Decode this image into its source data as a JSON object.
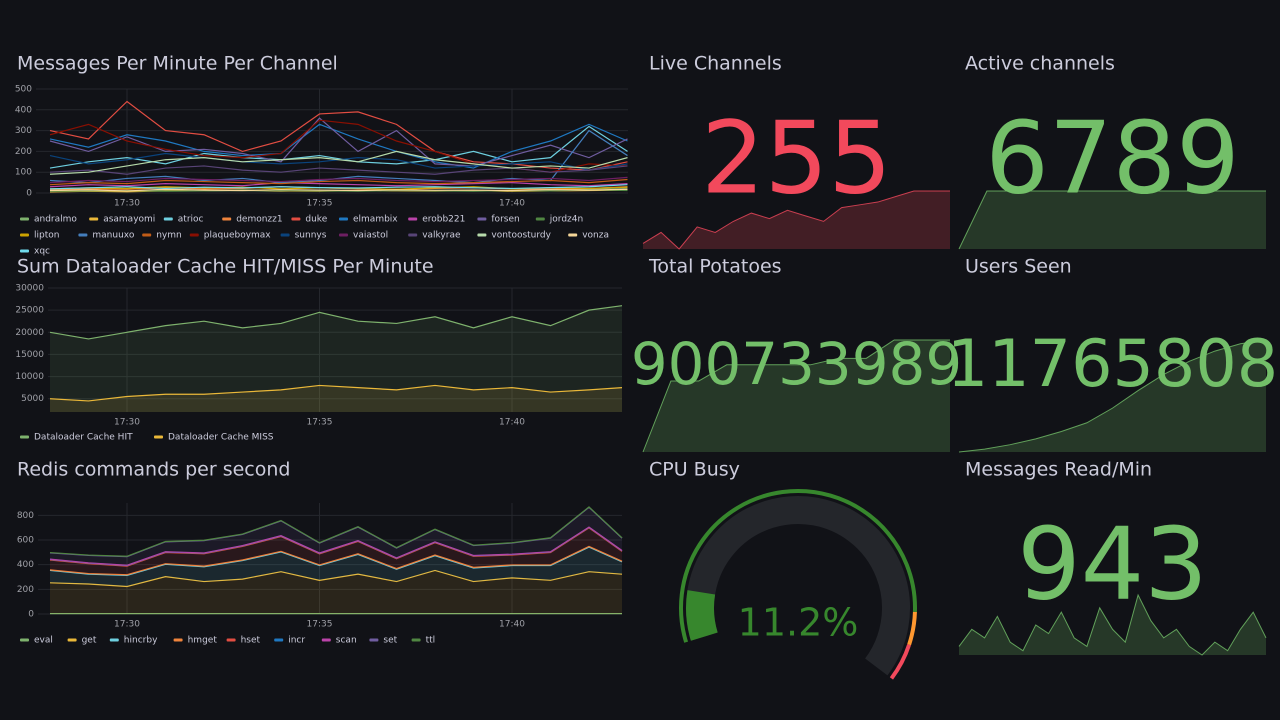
{
  "chart_data": [
    {
      "type": "timeseries",
      "title": "Messages Per Minute Per Channel",
      "categories": [
        null,
        null,
        "17:30",
        null,
        null,
        null,
        null,
        "17:35",
        null,
        null,
        null,
        null,
        "17:40",
        null,
        null,
        null
      ],
      "ylim": [
        0,
        500
      ],
      "yticks": [
        0,
        100,
        200,
        300,
        400,
        500
      ],
      "grid": true,
      "series": [
        {
          "name": "andralmo",
          "color": "#7eb26d",
          "values": [
            10,
            12,
            8,
            15,
            10,
            12,
            9,
            14,
            11,
            10,
            13,
            12,
            10,
            15,
            20,
            25
          ]
        },
        {
          "name": "asamayomi",
          "color": "#eab839",
          "values": [
            5,
            8,
            6,
            10,
            12,
            15,
            10,
            8,
            12,
            10,
            9,
            11,
            8,
            10,
            12,
            14
          ]
        },
        {
          "name": "atrioc",
          "color": "#6ed0e0",
          "values": [
            120,
            150,
            170,
            140,
            190,
            170,
            160,
            180,
            150,
            140,
            160,
            200,
            150,
            170,
            320,
            200
          ]
        },
        {
          "name": "demonzz1",
          "color": "#ef843c",
          "values": [
            15,
            20,
            18,
            25,
            20,
            22,
            30,
            25,
            20,
            18,
            22,
            25,
            20,
            18,
            22,
            30
          ]
        },
        {
          "name": "duke",
          "color": "#e24d42",
          "values": [
            300,
            260,
            440,
            300,
            280,
            200,
            250,
            380,
            390,
            330,
            200,
            150,
            140,
            120,
            110,
            150
          ]
        },
        {
          "name": "elmambix",
          "color": "#1f78c1",
          "values": [
            260,
            220,
            280,
            250,
            200,
            180,
            190,
            330,
            260,
            200,
            150,
            120,
            200,
            250,
            330,
            250
          ]
        },
        {
          "name": "erobb221",
          "color": "#ba43a9",
          "values": [
            30,
            40,
            35,
            45,
            40,
            35,
            50,
            45,
            40,
            35,
            40,
            45,
            50,
            40,
            35,
            45
          ]
        },
        {
          "name": "forsen",
          "color": "#705da0",
          "values": [
            250,
            200,
            270,
            200,
            210,
            190,
            150,
            360,
            200,
            300,
            140,
            130,
            180,
            230,
            170,
            260
          ]
        },
        {
          "name": "jordz4n",
          "color": "#508642",
          "values": [
            8,
            10,
            12,
            8,
            10,
            15,
            12,
            10,
            8,
            12,
            10,
            8,
            12,
            10,
            15,
            12
          ]
        },
        {
          "name": "lipton",
          "color": "#cca300",
          "values": [
            20,
            25,
            22,
            30,
            25,
            28,
            20,
            25,
            22,
            18,
            25,
            30,
            20,
            25,
            22,
            28
          ]
        },
        {
          "name": "manuuxo",
          "color": "#447ebc",
          "values": [
            60,
            50,
            70,
            80,
            60,
            70,
            50,
            60,
            80,
            70,
            60,
            50,
            70,
            60,
            300,
            180
          ]
        },
        {
          "name": "nymn",
          "color": "#c15c17",
          "values": [
            40,
            50,
            45,
            60,
            55,
            50,
            45,
            55,
            60,
            50,
            45,
            50,
            55,
            60,
            50,
            65
          ]
        },
        {
          "name": "plaqueboymax",
          "color": "#890f02",
          "values": [
            280,
            330,
            250,
            210,
            180,
            170,
            190,
            350,
            330,
            250,
            200,
            140,
            120,
            100,
            140,
            130
          ]
        },
        {
          "name": "sunnys",
          "color": "#0a437c",
          "values": [
            180,
            140,
            160,
            190,
            170,
            150,
            140,
            150,
            170,
            160,
            120,
            130,
            140,
            150,
            110,
            140
          ]
        },
        {
          "name": "vaiastol",
          "color": "#6d1f62",
          "values": [
            50,
            60,
            55,
            70,
            65,
            60,
            55,
            65,
            70,
            60,
            55,
            60,
            65,
            70,
            60,
            75
          ]
        },
        {
          "name": "valkyrae",
          "color": "#584477",
          "values": [
            100,
            110,
            90,
            120,
            130,
            110,
            100,
            120,
            110,
            100,
            90,
            110,
            120,
            100,
            110,
            130
          ]
        },
        {
          "name": "vontoosturdy",
          "color": "#b7dbab",
          "values": [
            90,
            100,
            130,
            160,
            170,
            150,
            160,
            170,
            150,
            200,
            160,
            140,
            120,
            130,
            120,
            170
          ]
        },
        {
          "name": "vonza",
          "color": "#f4d598",
          "values": [
            12,
            15,
            10,
            18,
            14,
            12,
            16,
            14,
            12,
            15,
            13,
            14,
            12,
            16,
            14,
            18
          ]
        },
        {
          "name": "xqc",
          "color": "#70dbed",
          "values": [
            20,
            25,
            30,
            22,
            28,
            25,
            30,
            26,
            24,
            28,
            30,
            25,
            22,
            26,
            30,
            40
          ]
        }
      ]
    },
    {
      "type": "timeseries",
      "title": "Sum Dataloader Cache HIT/MISS Per Minute",
      "categories": [
        null,
        null,
        "17:30",
        null,
        null,
        null,
        null,
        "17:35",
        null,
        null,
        null,
        null,
        "17:40",
        null,
        null,
        null
      ],
      "ylim": [
        2000,
        30000
      ],
      "yticks": [
        5000,
        10000,
        15000,
        20000,
        25000,
        30000
      ],
      "grid": true,
      "series": [
        {
          "name": "Dataloader Cache HIT",
          "color": "#7eb26d",
          "values": [
            20000,
            18500,
            20000,
            21500,
            22500,
            21000,
            22000,
            24500,
            22500,
            22000,
            23500,
            21000,
            23500,
            21500,
            25000,
            26000
          ]
        },
        {
          "name": "Dataloader Cache MISS",
          "color": "#eab839",
          "values": [
            5000,
            4500,
            5500,
            6000,
            6000,
            6500,
            7000,
            8000,
            7500,
            7000,
            8000,
            7000,
            7500,
            6500,
            7000,
            7500
          ]
        }
      ]
    },
    {
      "type": "timeseries",
      "stacked": true,
      "title": "Redis commands per second",
      "categories": [
        null,
        null,
        "17:30",
        null,
        null,
        null,
        null,
        "17:35",
        null,
        null,
        null,
        null,
        "17:40",
        null,
        null,
        null
      ],
      "ylim": [
        0,
        900
      ],
      "yticks": [
        0,
        200,
        400,
        600,
        800
      ],
      "grid": true,
      "series": [
        {
          "name": "eval",
          "color": "#7eb26d",
          "values": [
            3,
            3,
            3,
            3,
            3,
            3,
            3,
            3,
            3,
            3,
            3,
            3,
            3,
            3,
            3,
            3
          ]
        },
        {
          "name": "get",
          "color": "#eab839",
          "values": [
            250,
            240,
            220,
            300,
            260,
            280,
            340,
            270,
            320,
            260,
            350,
            260,
            290,
            270,
            340,
            320
          ]
        },
        {
          "name": "hincrby",
          "color": "#6ed0e0",
          "values": [
            100,
            80,
            90,
            100,
            120,
            150,
            160,
            120,
            160,
            100,
            120,
            110,
            100,
            120,
            200,
            100
          ]
        },
        {
          "name": "hmget",
          "color": "#ef843c",
          "values": [
            5,
            5,
            5,
            5,
            5,
            5,
            5,
            5,
            5,
            5,
            5,
            5,
            5,
            5,
            5,
            5
          ]
        },
        {
          "name": "hset",
          "color": "#e24d42",
          "values": [
            80,
            80,
            70,
            90,
            100,
            110,
            120,
            90,
            100,
            80,
            100,
            90,
            80,
            100,
            150,
            80
          ]
        },
        {
          "name": "incr",
          "color": "#1f78c1",
          "values": [
            5,
            5,
            5,
            5,
            5,
            5,
            5,
            5,
            5,
            5,
            5,
            5,
            5,
            5,
            5,
            5
          ]
        },
        {
          "name": "scan",
          "color": "#ba43a9",
          "values": [
            2,
            2,
            2,
            2,
            2,
            2,
            2,
            2,
            2,
            2,
            2,
            2,
            2,
            2,
            2,
            2
          ]
        },
        {
          "name": "set",
          "color": "#705da0",
          "values": [
            50,
            60,
            70,
            80,
            100,
            90,
            120,
            80,
            110,
            80,
            100,
            80,
            90,
            110,
            160,
            100
          ]
        },
        {
          "name": "ttl",
          "color": "#508642",
          "values": [
            3,
            3,
            3,
            3,
            3,
            3,
            3,
            3,
            3,
            3,
            3,
            3,
            3,
            3,
            3,
            3
          ]
        }
      ]
    },
    {
      "type": "stat",
      "title": "Live Channels",
      "value": 255,
      "color": "#f2495c",
      "sparkline": [
        236,
        240,
        234,
        242,
        240,
        244,
        247,
        245,
        248,
        246,
        244,
        249,
        250,
        251,
        253,
        255,
        255,
        255
      ]
    },
    {
      "type": "stat",
      "title": "Active channels",
      "value": 6789,
      "color": "#73bf69",
      "sparkline": [
        0,
        6789,
        6789,
        6789,
        6789,
        6789,
        6789,
        6789,
        6789,
        6789,
        6789,
        6789
      ]
    },
    {
      "type": "stat",
      "title": "Total Potatoes",
      "value": 900733989,
      "color": "#73bf69",
      "sparkline": [
        899000000,
        900100000,
        900100000,
        900350000,
        900350000,
        900350000,
        900350000,
        900450000,
        900450000,
        900733989,
        900733989,
        900733989
      ]
    },
    {
      "type": "stat",
      "title": "Users Seen",
      "value": 11765808,
      "color": "#73bf69",
      "sparkline": [
        11000000,
        11020000,
        11050000,
        11090000,
        11140000,
        11200000,
        11300000,
        11420000,
        11530000,
        11620000,
        11690000,
        11740000,
        11765808
      ]
    },
    {
      "type": "gauge",
      "title": "CPU Busy",
      "value": 11.2,
      "value_label": "11.2%",
      "min": 0,
      "max": 100,
      "color": "#37872d",
      "thresholds": [
        {
          "value": 0,
          "color": "#37872d"
        },
        {
          "value": 85,
          "color": "#ff9830"
        },
        {
          "value": 92,
          "color": "#f2495c"
        }
      ]
    },
    {
      "type": "stat",
      "title": "Messages Read/Min",
      "value": 943,
      "color": "#73bf69",
      "sparkline": [
        860,
        900,
        880,
        930,
        870,
        850,
        910,
        890,
        940,
        880,
        860,
        950,
        900,
        870,
        980,
        920,
        880,
        900,
        860,
        840,
        870,
        850,
        900,
        940,
        880
      ]
    }
  ]
}
